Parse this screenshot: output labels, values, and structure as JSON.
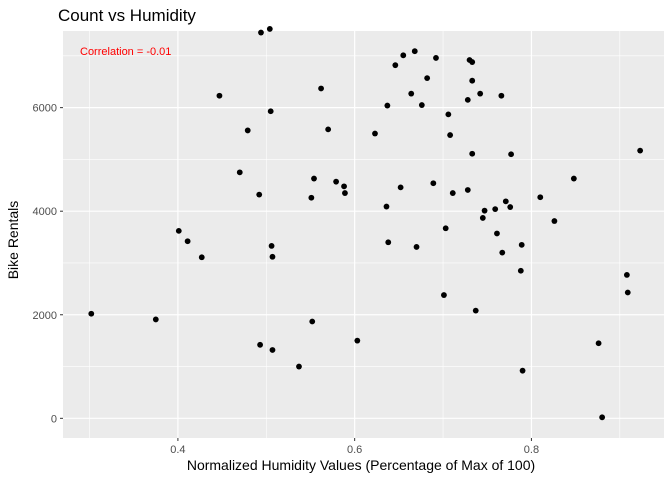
{
  "chart_data": {
    "type": "scatter",
    "title": "Count vs Humidity",
    "xlabel": "Normalized Humidity Values (Percentage of Max of 100)",
    "ylabel": "Bike Rentals",
    "xlim": [
      0.27,
      0.95
    ],
    "ylim": [
      -380,
      7480
    ],
    "x_ticks": [
      0.4,
      0.6,
      0.8
    ],
    "x_tick_labels": [
      "0.4",
      "0.6",
      "0.8"
    ],
    "y_ticks": [
      0,
      2000,
      4000,
      6000
    ],
    "y_tick_labels": [
      "0",
      "2000",
      "4000",
      "6000"
    ],
    "annotation": "Correlation = -0.01",
    "annotation_color": "#ff0000",
    "panel_color": "#ebebeb",
    "grid_color": "#ffffff",
    "point_color": "#000000",
    "grid": true,
    "points": [
      {
        "x": 0.302,
        "y": 2020
      },
      {
        "x": 0.375,
        "y": 1910
      },
      {
        "x": 0.401,
        "y": 3620
      },
      {
        "x": 0.411,
        "y": 3420
      },
      {
        "x": 0.427,
        "y": 3110
      },
      {
        "x": 0.447,
        "y": 6230
      },
      {
        "x": 0.47,
        "y": 4750
      },
      {
        "x": 0.479,
        "y": 5560
      },
      {
        "x": 0.492,
        "y": 4320
      },
      {
        "x": 0.493,
        "y": 1420
      },
      {
        "x": 0.494,
        "y": 7450
      },
      {
        "x": 0.504,
        "y": 7520
      },
      {
        "x": 0.505,
        "y": 5930
      },
      {
        "x": 0.506,
        "y": 3330
      },
      {
        "x": 0.507,
        "y": 3120
      },
      {
        "x": 0.507,
        "y": 1320
      },
      {
        "x": 0.537,
        "y": 1000
      },
      {
        "x": 0.551,
        "y": 4260
      },
      {
        "x": 0.552,
        "y": 1870
      },
      {
        "x": 0.554,
        "y": 4630
      },
      {
        "x": 0.562,
        "y": 6370
      },
      {
        "x": 0.57,
        "y": 5580
      },
      {
        "x": 0.579,
        "y": 4570
      },
      {
        "x": 0.588,
        "y": 4480
      },
      {
        "x": 0.589,
        "y": 4350
      },
      {
        "x": 0.603,
        "y": 1500
      },
      {
        "x": 0.623,
        "y": 5500
      },
      {
        "x": 0.636,
        "y": 4090
      },
      {
        "x": 0.637,
        "y": 6040
      },
      {
        "x": 0.638,
        "y": 3400
      },
      {
        "x": 0.646,
        "y": 6820
      },
      {
        "x": 0.652,
        "y": 4460
      },
      {
        "x": 0.655,
        "y": 7010
      },
      {
        "x": 0.664,
        "y": 6270
      },
      {
        "x": 0.668,
        "y": 7090
      },
      {
        "x": 0.67,
        "y": 3310
      },
      {
        "x": 0.676,
        "y": 6050
      },
      {
        "x": 0.682,
        "y": 6570
      },
      {
        "x": 0.689,
        "y": 4540
      },
      {
        "x": 0.692,
        "y": 6960
      },
      {
        "x": 0.701,
        "y": 2380
      },
      {
        "x": 0.703,
        "y": 3670
      },
      {
        "x": 0.706,
        "y": 5870
      },
      {
        "x": 0.708,
        "y": 5470
      },
      {
        "x": 0.711,
        "y": 4350
      },
      {
        "x": 0.728,
        "y": 6150
      },
      {
        "x": 0.728,
        "y": 4410
      },
      {
        "x": 0.73,
        "y": 6920
      },
      {
        "x": 0.733,
        "y": 6880
      },
      {
        "x": 0.733,
        "y": 6520
      },
      {
        "x": 0.733,
        "y": 5110
      },
      {
        "x": 0.737,
        "y": 2080
      },
      {
        "x": 0.742,
        "y": 6270
      },
      {
        "x": 0.745,
        "y": 3870
      },
      {
        "x": 0.747,
        "y": 4010
      },
      {
        "x": 0.759,
        "y": 4040
      },
      {
        "x": 0.761,
        "y": 3570
      },
      {
        "x": 0.766,
        "y": 6230
      },
      {
        "x": 0.767,
        "y": 3200
      },
      {
        "x": 0.771,
        "y": 4190
      },
      {
        "x": 0.776,
        "y": 4080
      },
      {
        "x": 0.777,
        "y": 5100
      },
      {
        "x": 0.788,
        "y": 2850
      },
      {
        "x": 0.789,
        "y": 3350
      },
      {
        "x": 0.79,
        "y": 920
      },
      {
        "x": 0.81,
        "y": 4270
      },
      {
        "x": 0.826,
        "y": 3810
      },
      {
        "x": 0.848,
        "y": 4630
      },
      {
        "x": 0.876,
        "y": 1450
      },
      {
        "x": 0.88,
        "y": 20
      },
      {
        "x": 0.908,
        "y": 2770
      },
      {
        "x": 0.909,
        "y": 2430
      },
      {
        "x": 0.923,
        "y": 5170
      }
    ]
  }
}
